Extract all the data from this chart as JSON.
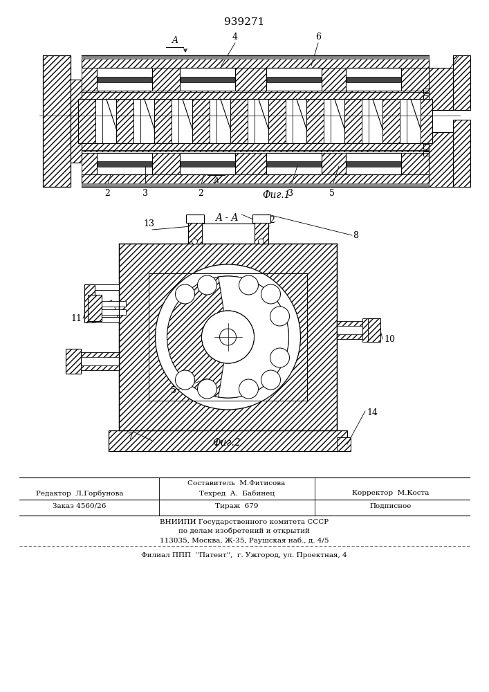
{
  "patent_number": "939271",
  "fig1_caption": "Фиг.1",
  "fig2_caption": "Фиг.2",
  "section_label": "A - A",
  "bg_color": "#ffffff",
  "line_color": "#000000"
}
